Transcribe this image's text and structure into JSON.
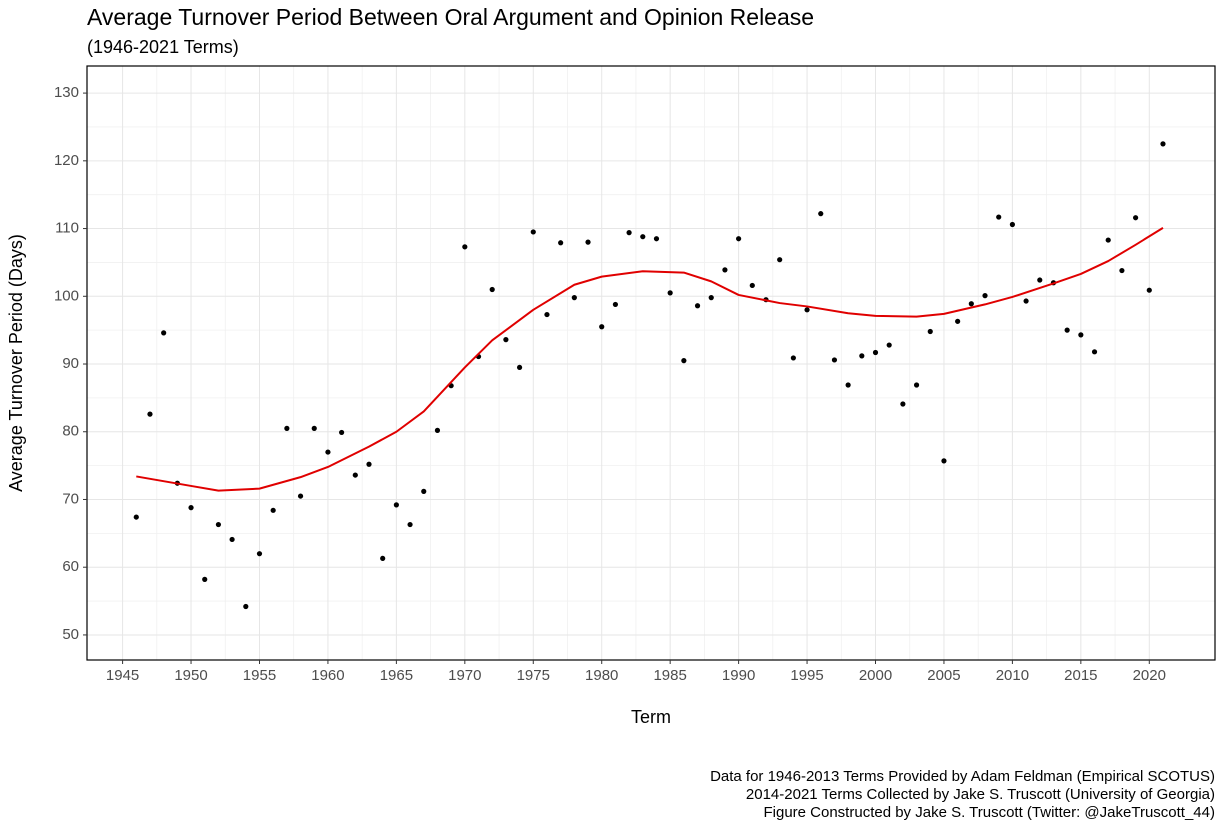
{
  "chart_data": {
    "type": "scatter",
    "title": "Average Turnover Period Between Oral Argument and Opinion Release",
    "subtitle": "(1946-2021 Terms)",
    "x_label": "Term",
    "y_label": "Average Turnover Period (Days)",
    "caption": [
      "Data for 1946-2013 Terms Provided by Adam Feldman (Empirical SCOTUS)",
      "2014-2021 Terms Collected by Jake S. Truscott (University of Georgia)",
      "Figure Constructed by Jake S. Truscott (Twitter: @JakeTruscott_44)"
    ],
    "x": [
      1946,
      1947,
      1948,
      1949,
      1950,
      1951,
      1952,
      1953,
      1954,
      1955,
      1956,
      1957,
      1958,
      1959,
      1960,
      1961,
      1962,
      1963,
      1964,
      1965,
      1966,
      1967,
      1968,
      1969,
      1970,
      1971,
      1972,
      1973,
      1974,
      1975,
      1976,
      1977,
      1978,
      1979,
      1980,
      1981,
      1982,
      1983,
      1984,
      1985,
      1986,
      1987,
      1988,
      1989,
      1990,
      1991,
      1992,
      1993,
      1994,
      1995,
      1996,
      1997,
      1998,
      1999,
      2000,
      2001,
      2002,
      2003,
      2004,
      2005,
      2006,
      2007,
      2008,
      2009,
      2010,
      2011,
      2012,
      2013,
      2014,
      2015,
      2016,
      2017,
      2018,
      2019,
      2020,
      2021
    ],
    "values": [
      67.4,
      82.6,
      94.6,
      72.4,
      68.8,
      58.2,
      66.3,
      64.1,
      54.2,
      62.0,
      68.4,
      80.5,
      70.5,
      80.5,
      77.0,
      79.9,
      73.6,
      75.2,
      61.3,
      69.2,
      66.3,
      71.2,
      80.2,
      86.8,
      107.3,
      91.1,
      101.0,
      93.6,
      89.5,
      109.5,
      97.3,
      107.9,
      99.8,
      108.0,
      95.5,
      98.8,
      109.4,
      108.8,
      108.5,
      100.5,
      90.5,
      98.6,
      99.8,
      103.9,
      108.5,
      101.6,
      99.5,
      105.4,
      90.9,
      98.0,
      112.2,
      90.6,
      86.9,
      91.2,
      91.7,
      92.8,
      84.1,
      86.9,
      94.8,
      75.7,
      96.3,
      98.9,
      100.1,
      111.7,
      110.6,
      99.3,
      102.4,
      102.0,
      95.0,
      94.3,
      91.8,
      108.3,
      103.8,
      111.6,
      100.9,
      122.5
    ],
    "color": "#000000",
    "smooth": {
      "color": "#e00000",
      "x": [
        1946,
        1950,
        1952,
        1955,
        1958,
        1960,
        1963,
        1965,
        1967,
        1970,
        1972,
        1975,
        1978,
        1980,
        1983,
        1986,
        1988,
        1990,
        1993,
        1995,
        1998,
        2000,
        2003,
        2005,
        2008,
        2010,
        2013,
        2015,
        2017,
        2019,
        2021
      ],
      "values": [
        73.4,
        72.0,
        71.3,
        71.6,
        73.3,
        74.8,
        77.8,
        80.0,
        83.0,
        89.5,
        93.5,
        98.0,
        101.7,
        102.9,
        103.7,
        103.5,
        102.2,
        100.2,
        99.0,
        98.5,
        97.5,
        97.1,
        97.0,
        97.4,
        98.8,
        99.9,
        101.9,
        103.3,
        105.2,
        107.6,
        110.1
      ]
    },
    "xlim": [
      1942.4,
      2024.8
    ],
    "ylim": [
      46.3,
      134
    ],
    "xticks": [
      1945,
      1950,
      1955,
      1960,
      1965,
      1970,
      1975,
      1980,
      1985,
      1990,
      1995,
      2000,
      2005,
      2010,
      2015,
      2020
    ],
    "yticks": [
      50,
      60,
      70,
      80,
      90,
      100,
      110,
      120,
      130
    ],
    "grid": true
  }
}
